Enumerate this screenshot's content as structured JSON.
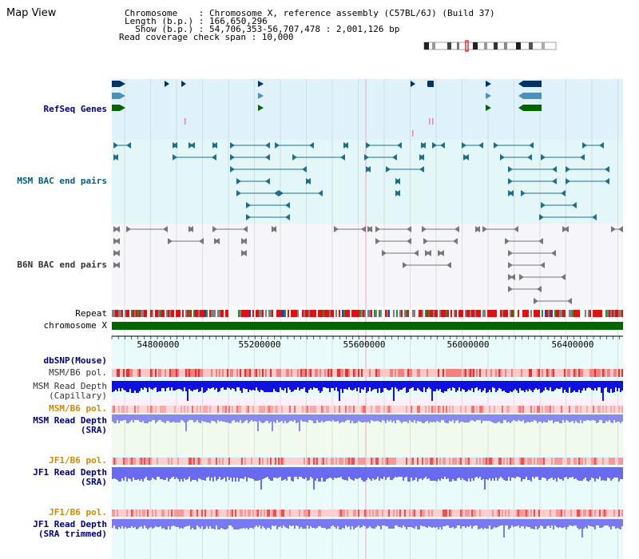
{
  "title": "Map View",
  "header": {
    "line1": "Chromosome    : Chromosome X, reference assembly (C57BL/6J) (Build 37)",
    "line2": "Length (b.p.) : 166,650,296",
    "line3": "  Show (b.p.) : 54,706,353-56,707,478 : 2,001,126 bp",
    "line4": "Read coverage check span : 10,000"
  },
  "tracks": {
    "refseq": "RefSeq Genes",
    "msm_bac": "MSM BAC end pairs",
    "b6n_bac": "B6N BAC end pairs",
    "repeat": "Repeat",
    "chrom": "chromosome X",
    "dbsnp": "dbSNP(Mouse)",
    "msm_pol1": "MSM/B6 pol.",
    "msm_depth_cap_1": "MSM Read Depth",
    "msm_depth_cap_2": "(Capillary)",
    "msm_pol2": "MSM/B6 pol.",
    "msm_depth_sra_1": "MSM Read Depth",
    "msm_depth_sra_2": "(SRA)",
    "jf1_pol1": "JF1/B6 pol.",
    "jf1_depth_sra_1": "JF1 Read Depth",
    "jf1_depth_sra_2": "(SRA)",
    "jf1_pol2": "JF1/B6 pol.",
    "jf1_depth_tr_1": "JF1 Read Depth",
    "jf1_depth_tr_2": "(SRA trimmed)"
  },
  "axis": {
    "ticks": [
      "54800000",
      "55200000",
      "55600000",
      "56000000",
      "56400000"
    ]
  },
  "colors": {
    "gene_navy": "#003366",
    "gene_blue": "#4a90b8",
    "gene_green": "#006600",
    "bac_teal": "#1f6f8b",
    "chrom_green": "#006600"
  }
}
